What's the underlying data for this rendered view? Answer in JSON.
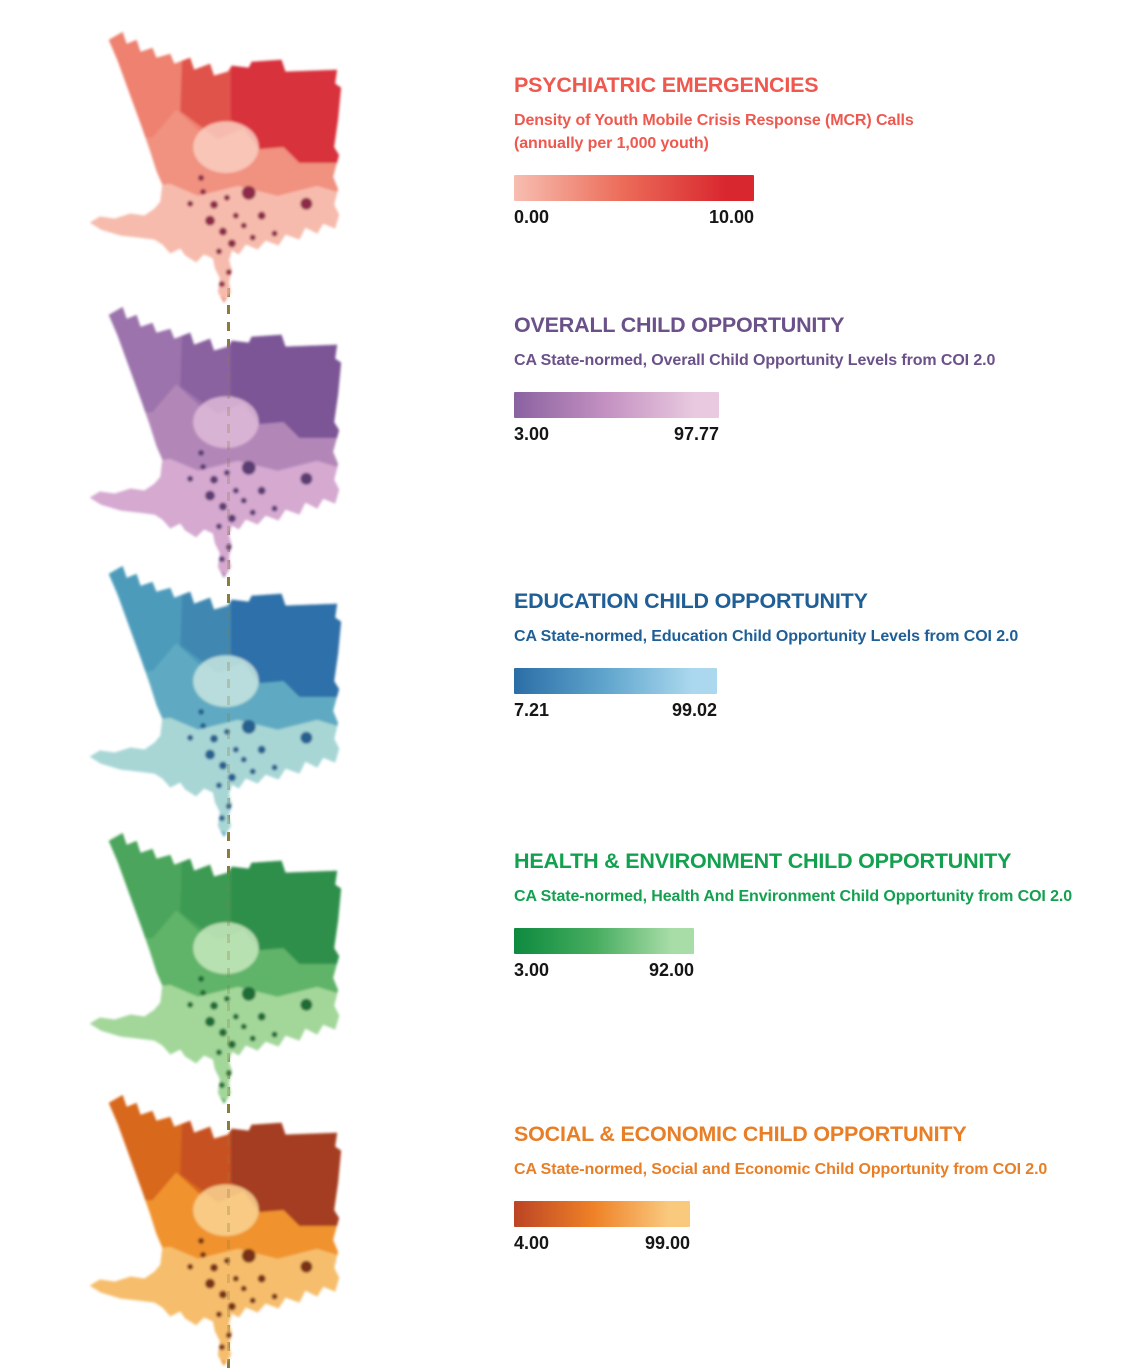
{
  "figure": {
    "background": "#FFFFFF",
    "divider_line": {
      "name": "vertical-dashed-fold-line",
      "color": "#8A7C3B"
    }
  },
  "sections": [
    {
      "map_name": "psychiatric-emergencies-choropleth",
      "title": "PSYCHIATRIC EMERGENCIES",
      "subtitle_lines": [
        "Density of Youth Mobile Crisis Response (MCR) Calls",
        "(annually per 1,000 youth)"
      ],
      "accent_color": "#EE584E",
      "legend": {
        "min_label": "0.00",
        "max_label": "10.00",
        "gradient": [
          "#F7BEB1",
          "#EC6C59",
          "#D9272F"
        ]
      },
      "map_colors": {
        "base": "#F19180",
        "nw": "#EE8170",
        "mid": "#E0524C",
        "ne": "#D8333E",
        "light": "#F6BBAC",
        "pale": "#F9CEC0",
        "dark": "#8E2A4A"
      }
    },
    {
      "map_name": "overall-child-opportunity-choropleth",
      "title": "OVERALL CHILD OPPORTUNITY",
      "subtitle_lines": [
        "CA State-normed, Overall Child Opportunity Levels from COI 2.0",
        ""
      ],
      "accent_color": "#6B5189",
      "legend": {
        "min_label": "3.00",
        "max_label": "97.77",
        "gradient": [
          "#8A62A0",
          "#C491C2",
          "#E8C9DF"
        ]
      },
      "map_colors": {
        "base": "#B287B8",
        "nw": "#9C73AC",
        "mid": "#8A62A0",
        "ne": "#7C5596",
        "light": "#D5A9D0",
        "pale": "#DFBBD8",
        "dark": "#5C3D73"
      }
    },
    {
      "map_name": "education-child-opportunity-choropleth",
      "title": "EDUCATION CHILD OPPORTUNITY",
      "subtitle_lines": [
        "CA State-normed, Education Child Opportunity Levels from COI 2.0",
        ""
      ],
      "accent_color": "#1F5F96",
      "legend": {
        "min_label": "7.21",
        "max_label": "99.02",
        "gradient": [
          "#2B6EA7",
          "#60A5CD",
          "#ABD8EE"
        ]
      },
      "map_colors": {
        "base": "#5FAAC2",
        "nw": "#4D9BBB",
        "mid": "#3F88B1",
        "ne": "#2E6FA9",
        "light": "#A8D6D5",
        "pale": "#C8E6E1",
        "dark": "#27608F"
      }
    },
    {
      "map_name": "health-environment-child-opportunity-choropleth",
      "title": "HEALTH & ENVIRONMENT CHILD OPPORTUNITY",
      "subtitle_lines": [
        "CA State-normed, Health And Environment Child Opportunity from COI 2.0",
        ""
      ],
      "accent_color": "#13A150",
      "legend": {
        "min_label": "3.00",
        "max_label": "92.00",
        "gradient": [
          "#0D8A3F",
          "#47AD5F",
          "#A9DDA8"
        ]
      },
      "map_colors": {
        "base": "#60B469",
        "nw": "#4BA55C",
        "mid": "#3D9A52",
        "ne": "#2F8F4B",
        "light": "#A3D79A",
        "pale": "#C8E9BE",
        "dark": "#1D6C36"
      }
    },
    {
      "map_name": "social-economic-child-opportunity-choropleth",
      "title": "SOCIAL & ECONOMIC CHILD OPPORTUNITY",
      "subtitle_lines": [
        "CA State-normed, Social and Economic Child Opportunity from COI 2.0",
        ""
      ],
      "accent_color": "#E87E26",
      "legend": {
        "min_label": "4.00",
        "max_label": "99.00",
        "gradient": [
          "#BC4425",
          "#EF8127",
          "#F9C97E"
        ]
      },
      "map_colors": {
        "base": "#F0932F",
        "nw": "#D8681F",
        "mid": "#C85120",
        "ne": "#A53C20",
        "light": "#F6BE6C",
        "pale": "#F9D492",
        "dark": "#7A3015"
      }
    }
  ]
}
